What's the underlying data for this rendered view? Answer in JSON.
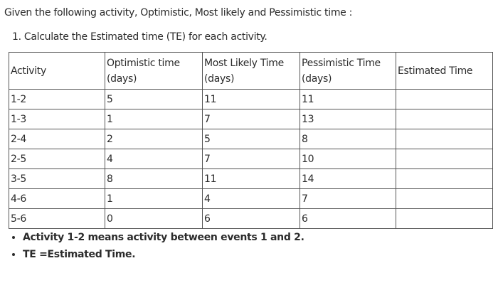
{
  "intro": "Given the following activity, Optimistic, Most likely and Pessimistic time :",
  "question": "1. Calculate the Estimated time (TE)  for each activity.",
  "table": {
    "header": [
      [
        "Activity"
      ],
      [
        "Optimistic time",
        "(days)"
      ],
      [
        "Most Likely Time",
        "(days)"
      ],
      [
        "Pessimistic Time",
        "(days)"
      ],
      [
        "Estimated Time"
      ]
    ],
    "rows": [
      [
        "1-2",
        "5",
        "11",
        "11"
      ],
      [
        "1-3",
        "1",
        "7",
        "13"
      ],
      [
        "2-4",
        "2",
        "5",
        "8"
      ],
      [
        "2-5",
        "4",
        "7",
        "10"
      ],
      [
        "3-5",
        "8",
        "11",
        "14"
      ],
      [
        "4-6",
        "1",
        "4",
        "7"
      ],
      [
        "5-6",
        "0",
        "6",
        "6"
      ]
    ]
  },
  "notes": [
    "Activity 1-2 means activity between events 1 and 2.",
    "TE =Estimated Time."
  ]
}
